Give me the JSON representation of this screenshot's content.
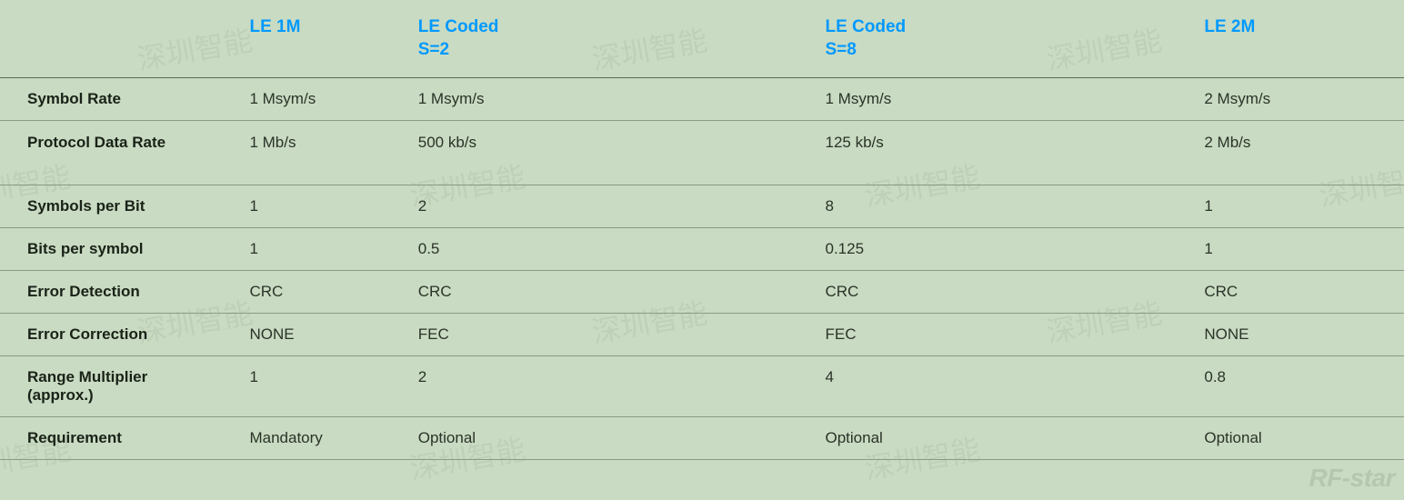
{
  "table": {
    "background_color": "#c9dbc2",
    "header_color": "#0099ff",
    "text_color": "#2a3328",
    "border_color": "#8a9a84",
    "columns": [
      {
        "label": ""
      },
      {
        "label": "LE 1M"
      },
      {
        "label": "LE Coded S=2"
      },
      {
        "label": "LE Coded S=8"
      },
      {
        "label": "LE 2M"
      }
    ],
    "rows": [
      {
        "label": "Symbol Rate",
        "cells": [
          "1 Msym/s",
          "1 Msym/s",
          "1 Msym/s",
          "2 Msym/s"
        ],
        "gap": false
      },
      {
        "label": "Protocol Data Rate",
        "cells": [
          "1 Mb/s",
          "500 kb/s",
          "125 kb/s",
          "2 Mb/s"
        ],
        "gap": true
      },
      {
        "label": "Symbols per Bit",
        "cells": [
          "1",
          "2",
          "8",
          "1"
        ],
        "gap": false
      },
      {
        "label": "Bits per symbol",
        "cells": [
          "1",
          "0.5",
          "0.125",
          "1"
        ],
        "gap": false
      },
      {
        "label": "Error Detection",
        "cells": [
          "CRC",
          "CRC",
          "CRC",
          "CRC"
        ],
        "gap": false
      },
      {
        "label": "Error Correction",
        "cells": [
          "NONE",
          "FEC",
          "FEC",
          "NONE"
        ],
        "gap": false
      },
      {
        "label": "Range Multiplier (approx.)",
        "cells": [
          "1",
          "2",
          "4",
          "0.8"
        ],
        "gap": false
      },
      {
        "label": "Requirement",
        "cells": [
          "Mandatory",
          "Optional",
          "Optional",
          "Optional"
        ],
        "gap": false
      }
    ]
  },
  "watermark": {
    "text": "深圳智能",
    "rf_logo": "RF-star"
  }
}
